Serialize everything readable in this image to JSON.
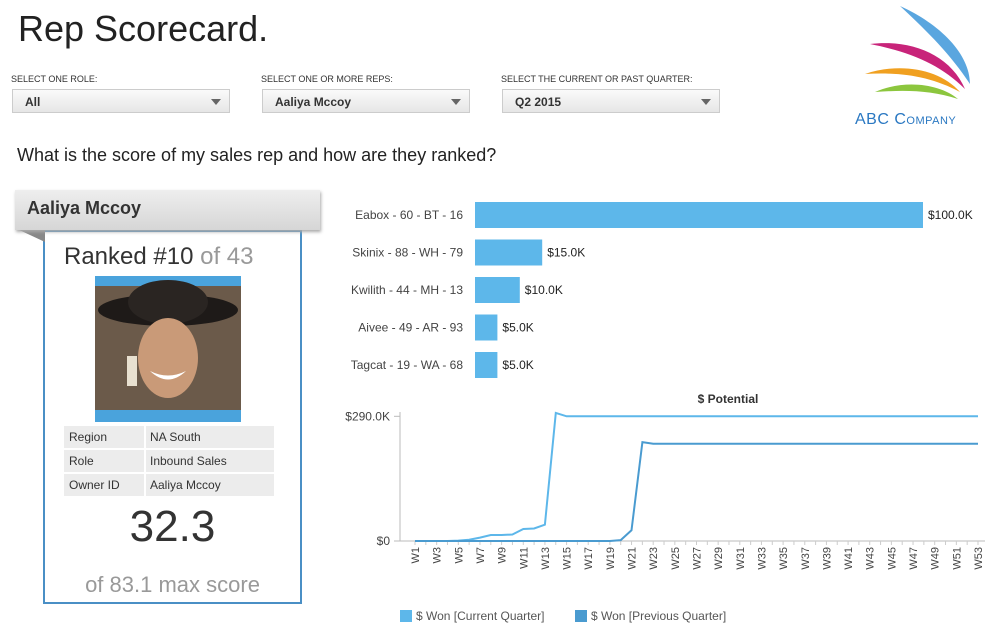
{
  "header": {
    "title": "Rep Scorecard."
  },
  "filters": [
    {
      "label": "SELECT ONE ROLE:",
      "value": "All"
    },
    {
      "label": "SELECT ONE OR MORE REPS:",
      "value": "Aaliya Mccoy"
    },
    {
      "label": "SELECT THE CURRENT OR PAST QUARTER:",
      "value": "Q2 2015"
    }
  ],
  "logo": {
    "name": "ABC Company"
  },
  "question": "What is the score of my sales rep and how are they ranked?",
  "rep_card": {
    "name": "Aaliya Mccoy",
    "rank": "Ranked #10",
    "rank_of": "of 43",
    "details": [
      [
        "Region",
        "NA South"
      ],
      [
        "Role",
        "Inbound Sales"
      ],
      [
        "Owner ID",
        "Aaliya Mccoy"
      ]
    ],
    "score": "32.3",
    "max_score": "of 83.1 max score"
  },
  "chart_data": [
    {
      "type": "hbar",
      "categories": [
        "Eabox - 60 - BT - 16",
        "Skinix - 88 - WH - 79",
        "Kwilith - 44 - MH - 13",
        "Aivee - 49 - AR - 93",
        "Tagcat - 19 - WA - 68"
      ],
      "values": [
        100000,
        15000,
        10000,
        5000,
        5000
      ],
      "value_labels": [
        "$100.0K",
        "$15.0K",
        "$10.0K",
        "$5.0K",
        "$5.0K"
      ],
      "color": "#5db7ea"
    },
    {
      "type": "line",
      "title": "$ Potential",
      "categories": [
        "W1",
        null,
        "W3",
        null,
        "W5",
        null,
        "W7",
        null,
        "W9",
        null,
        "W11",
        null,
        "W13",
        null,
        "W15",
        null,
        "W17",
        null,
        "W19",
        null,
        "W21",
        null,
        "W23",
        null,
        "W25",
        null,
        "W27",
        null,
        "W29",
        null,
        "W31",
        null,
        "W33",
        null,
        "W35",
        null,
        "W37",
        null,
        "W39",
        null,
        "W41",
        null,
        "W43",
        null,
        "W45",
        null,
        "W47",
        null,
        "W49",
        null,
        "W51",
        null,
        "W53"
      ],
      "ylim": [
        0,
        300000
      ],
      "yticks": [
        {
          "value": 0,
          "label": "$0"
        },
        {
          "value": 290000,
          "label": "$290.0K"
        }
      ],
      "series": [
        {
          "name": "$ Won [Current Quarter]",
          "color": "#5db7ea",
          "values": [
            0,
            0,
            0,
            0,
            1000,
            3000,
            8000,
            14000,
            14000,
            15000,
            28000,
            29000,
            38000,
            298000,
            290000,
            290000,
            290000,
            290000,
            290000,
            290000,
            290000,
            290000,
            290000,
            290000,
            290000,
            290000,
            290000,
            290000,
            290000,
            290000,
            290000,
            290000,
            290000,
            290000,
            290000,
            290000,
            290000,
            290000,
            290000,
            290000,
            290000,
            290000,
            290000,
            290000,
            290000,
            290000,
            290000,
            290000,
            290000,
            290000,
            290000,
            290000,
            290000
          ]
        },
        {
          "name": "$ Won [Previous Quarter]",
          "color": "#4a9bd0",
          "values": [
            0,
            0,
            0,
            0,
            0,
            0,
            0,
            0,
            0,
            0,
            0,
            0,
            0,
            0,
            0,
            0,
            0,
            0,
            0,
            2000,
            25000,
            230000,
            226000,
            226000,
            226000,
            226000,
            226000,
            226000,
            226000,
            226000,
            226000,
            226000,
            226000,
            226000,
            226000,
            226000,
            226000,
            226000,
            226000,
            226000,
            226000,
            226000,
            226000,
            226000,
            226000,
            226000,
            226000,
            226000,
            226000,
            226000,
            226000,
            226000,
            226000
          ]
        }
      ]
    }
  ]
}
